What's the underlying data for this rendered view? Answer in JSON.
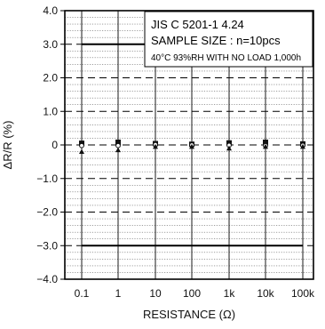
{
  "chart_data": {
    "type": "scatter",
    "title": "",
    "xlabel": "RESISTANCE (Ω)",
    "ylabel": "ΔR/R (%)",
    "categories": [
      "0.1",
      "1",
      "10",
      "100",
      "1k",
      "10k",
      "100k"
    ],
    "ylim": [
      -4.0,
      4.0
    ],
    "yticks": [
      "4.0",
      "3.0",
      "2.0",
      "1.0",
      "0",
      "−1.0",
      "−2.0",
      "−3.0",
      "−4.0"
    ],
    "ytick_values": [
      4,
      3,
      2,
      1,
      0,
      -1,
      -2,
      -3,
      -4
    ],
    "limits": [
      3.0,
      -3.0
    ],
    "grid": true,
    "annotations": [
      "JIS C 5201-1 4.24",
      "SAMPLE SIZE : n=10pcs",
      "40°C 93%RH WITH NO LOAD 1,000h"
    ],
    "series": [
      {
        "marker": "square",
        "values": [
          0.05,
          0.08,
          0.04,
          0.02,
          0.06,
          0.08,
          0.03
        ]
      },
      {
        "marker": "circle",
        "values": [
          -0.02,
          -0.02,
          0.01,
          0.0,
          -0.01,
          -0.02,
          -0.01
        ]
      },
      {
        "marker": "triangle",
        "values": [
          -0.2,
          -0.15,
          -0.05,
          -0.05,
          -0.1,
          -0.05,
          -0.05
        ]
      }
    ]
  }
}
